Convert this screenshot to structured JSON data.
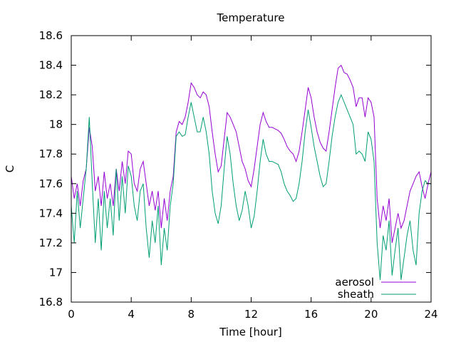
{
  "chart_data": {
    "type": "line",
    "title": "Temperature",
    "xlabel": "Time [hour]",
    "ylabel": "C",
    "xlim": [
      0,
      24
    ],
    "ylim": [
      16.8,
      18.6
    ],
    "x_ticks": [
      0,
      4,
      8,
      12,
      16,
      20,
      24
    ],
    "x_tick_labels": [
      "0",
      "4",
      "8",
      "12",
      "16",
      "20",
      "24"
    ],
    "y_ticks": [
      16.8,
      17.0,
      17.2,
      17.4,
      17.6,
      17.8,
      18.0,
      18.2,
      18.4,
      18.6
    ],
    "y_tick_labels": [
      "16.8",
      "17",
      "17.2",
      "17.4",
      "17.6",
      "17.8",
      "18",
      "18.2",
      "18.4",
      "18.6"
    ],
    "grid": false,
    "legend_position": "bottom-right",
    "series": [
      {
        "name": "aerosol",
        "color": "#9400d3",
        "x": [
          0,
          0.2,
          0.4,
          0.6,
          0.8,
          1.0,
          1.2,
          1.4,
          1.6,
          1.8,
          2.0,
          2.2,
          2.4,
          2.6,
          2.8,
          3.0,
          3.2,
          3.4,
          3.6,
          3.8,
          4.0,
          4.2,
          4.4,
          4.6,
          4.8,
          5.0,
          5.2,
          5.4,
          5.6,
          5.8,
          6.0,
          6.2,
          6.4,
          6.6,
          6.8,
          7.0,
          7.2,
          7.4,
          7.6,
          7.8,
          8.0,
          8.2,
          8.4,
          8.6,
          8.8,
          9.0,
          9.2,
          9.4,
          9.6,
          9.8,
          10.0,
          10.2,
          10.4,
          10.6,
          10.8,
          11.0,
          11.2,
          11.4,
          11.6,
          11.8,
          12.0,
          12.2,
          12.4,
          12.6,
          12.8,
          13.0,
          13.2,
          13.4,
          13.6,
          13.8,
          14.0,
          14.2,
          14.4,
          14.6,
          14.8,
          15.0,
          15.2,
          15.4,
          15.6,
          15.8,
          16.0,
          16.2,
          16.4,
          16.6,
          16.8,
          17.0,
          17.2,
          17.4,
          17.6,
          17.8,
          18.0,
          18.2,
          18.4,
          18.6,
          18.8,
          19.0,
          19.2,
          19.4,
          19.6,
          19.8,
          20.0,
          20.2,
          20.4,
          20.6,
          20.8,
          21.0,
          21.2,
          21.4,
          21.6,
          21.8,
          22.0,
          22.2,
          22.4,
          22.6,
          22.8,
          23.0,
          23.2,
          23.4,
          23.6,
          23.8,
          24.0
        ],
        "y": [
          17.65,
          17.5,
          17.6,
          17.45,
          17.62,
          17.7,
          17.98,
          17.85,
          17.55,
          17.65,
          17.45,
          17.68,
          17.5,
          17.6,
          17.45,
          17.7,
          17.55,
          17.75,
          17.6,
          17.82,
          17.8,
          17.6,
          17.55,
          17.7,
          17.75,
          17.6,
          17.45,
          17.55,
          17.42,
          17.55,
          17.3,
          17.5,
          17.35,
          17.55,
          17.65,
          17.95,
          18.02,
          18.0,
          18.05,
          18.15,
          18.28,
          18.25,
          18.2,
          18.18,
          18.22,
          18.2,
          18.12,
          17.95,
          17.8,
          17.68,
          17.72,
          17.9,
          18.08,
          18.05,
          18.0,
          17.95,
          17.85,
          17.75,
          17.7,
          17.62,
          17.58,
          17.7,
          17.85,
          18.0,
          18.08,
          18.02,
          17.98,
          17.98,
          17.97,
          17.96,
          17.94,
          17.9,
          17.85,
          17.82,
          17.8,
          17.75,
          17.82,
          17.95,
          18.1,
          18.25,
          18.18,
          18.05,
          17.95,
          17.88,
          17.84,
          17.82,
          17.95,
          18.1,
          18.25,
          18.38,
          18.4,
          18.35,
          18.34,
          18.3,
          18.25,
          18.12,
          18.18,
          18.18,
          18.05,
          18.18,
          18.15,
          18.05,
          17.5,
          17.3,
          17.45,
          17.35,
          17.5,
          17.2,
          17.3,
          17.4,
          17.3,
          17.35,
          17.45,
          17.55,
          17.6,
          17.65,
          17.68,
          17.58,
          17.5,
          17.6,
          17.68
        ]
      },
      {
        "name": "sheath",
        "color": "#009e73",
        "x": [
          0,
          0.2,
          0.4,
          0.6,
          0.8,
          1.0,
          1.2,
          1.4,
          1.6,
          1.8,
          2.0,
          2.2,
          2.4,
          2.6,
          2.8,
          3.0,
          3.2,
          3.4,
          3.6,
          3.8,
          4.0,
          4.2,
          4.4,
          4.6,
          4.8,
          5.0,
          5.2,
          5.4,
          5.6,
          5.8,
          6.0,
          6.2,
          6.4,
          6.6,
          6.8,
          7.0,
          7.2,
          7.4,
          7.6,
          7.8,
          8.0,
          8.2,
          8.4,
          8.6,
          8.8,
          9.0,
          9.2,
          9.4,
          9.6,
          9.8,
          10.0,
          10.2,
          10.4,
          10.6,
          10.8,
          11.0,
          11.2,
          11.4,
          11.6,
          11.8,
          12.0,
          12.2,
          12.4,
          12.6,
          12.8,
          13.0,
          13.2,
          13.4,
          13.6,
          13.8,
          14.0,
          14.2,
          14.4,
          14.6,
          14.8,
          15.0,
          15.2,
          15.4,
          15.6,
          15.8,
          16.0,
          16.2,
          16.4,
          16.6,
          16.8,
          17.0,
          17.2,
          17.4,
          17.6,
          17.8,
          18.0,
          18.2,
          18.4,
          18.6,
          18.8,
          19.0,
          19.2,
          19.4,
          19.6,
          19.8,
          20.0,
          20.2,
          20.4,
          20.6,
          20.8,
          21.0,
          21.2,
          21.4,
          21.6,
          21.8,
          22.0,
          22.2,
          22.4,
          22.6,
          22.8,
          23.0,
          23.2,
          23.4,
          23.6,
          23.8,
          24.0
        ],
        "y": [
          17.45,
          17.2,
          17.55,
          17.3,
          17.5,
          17.7,
          18.05,
          17.6,
          17.2,
          17.5,
          17.15,
          17.55,
          17.3,
          17.5,
          17.25,
          17.7,
          17.35,
          17.65,
          17.4,
          17.72,
          17.65,
          17.45,
          17.35,
          17.55,
          17.6,
          17.3,
          17.1,
          17.35,
          17.2,
          17.45,
          17.05,
          17.3,
          17.15,
          17.45,
          17.6,
          17.92,
          17.95,
          17.92,
          17.93,
          18.05,
          18.15,
          18.05,
          17.95,
          17.95,
          18.05,
          17.95,
          17.8,
          17.55,
          17.4,
          17.33,
          17.45,
          17.7,
          17.92,
          17.8,
          17.6,
          17.45,
          17.35,
          17.42,
          17.55,
          17.45,
          17.3,
          17.38,
          17.55,
          17.75,
          17.9,
          17.8,
          17.75,
          17.75,
          17.74,
          17.73,
          17.68,
          17.6,
          17.55,
          17.52,
          17.48,
          17.5,
          17.6,
          17.75,
          17.95,
          18.1,
          17.98,
          17.85,
          17.75,
          17.65,
          17.58,
          17.6,
          17.75,
          17.92,
          18.05,
          18.15,
          18.2,
          18.15,
          18.1,
          18.05,
          18.0,
          17.8,
          17.82,
          17.8,
          17.75,
          17.95,
          17.9,
          17.75,
          17.2,
          16.95,
          17.25,
          17.15,
          17.35,
          16.98,
          17.15,
          17.3,
          16.95,
          17.1,
          17.25,
          17.35,
          17.15,
          17.05,
          17.4,
          17.55,
          17.62,
          17.6,
          17.6
        ]
      }
    ]
  }
}
